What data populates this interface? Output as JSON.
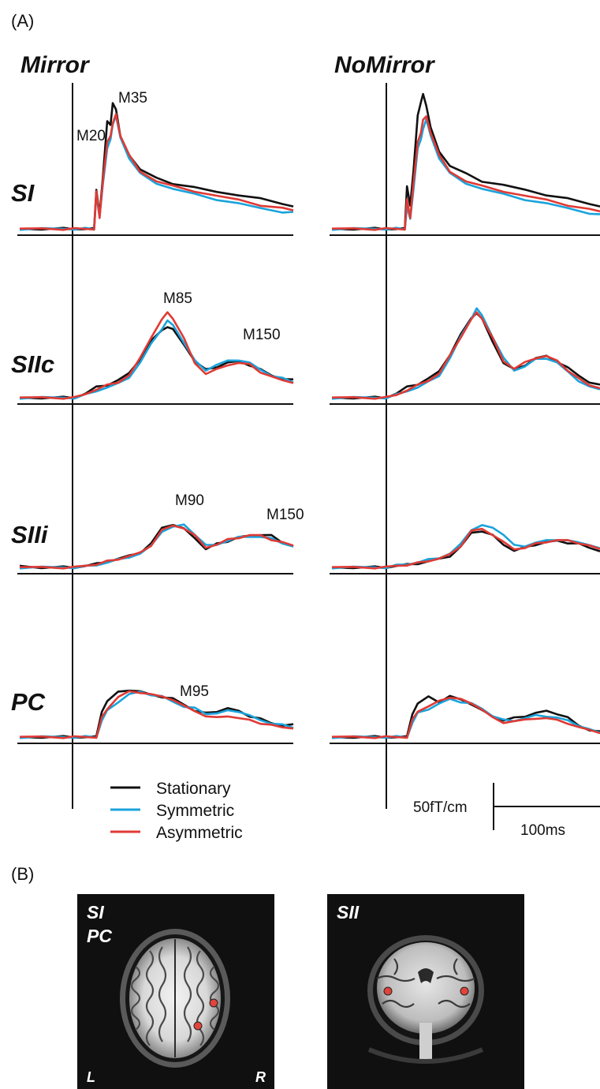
{
  "panel_a_label": "(A)",
  "panel_b_label": "(B)",
  "conditions": [
    "Mirror",
    "NoMirror"
  ],
  "rows": [
    "SI",
    "SIIc",
    "SIIi",
    "PC"
  ],
  "peak_labels": {
    "SI": [
      "M20",
      "M35"
    ],
    "SIIc": [
      "M85",
      "M150"
    ],
    "SIIi": [
      "M90",
      "M150"
    ],
    "PC": [
      "M95"
    ]
  },
  "legend": [
    {
      "name": "Stationary",
      "color": "#111111"
    },
    {
      "name": "Symmetric",
      "color": "#1aa3dc"
    },
    {
      "name": "Asymmetric",
      "color": "#e03a34"
    }
  ],
  "scale_bar": {
    "amplitude": "50fT/cm",
    "time": "100ms"
  },
  "mri": {
    "left_labels": [
      "SI",
      "PC"
    ],
    "right_label": "SII",
    "orientation": [
      "L",
      "R"
    ],
    "marker_color": "#e0443a"
  },
  "chart_data": [
    {
      "type": "line",
      "condition": "Mirror",
      "row": "SI",
      "x_unit": "ms",
      "xlim": [
        -50,
        200
      ],
      "annotations": [
        {
          "text": "M20",
          "x": 20
        },
        {
          "text": "M35",
          "x": 35
        }
      ],
      "x": [
        -50,
        -30,
        -10,
        0,
        10,
        18,
        20,
        23,
        26,
        30,
        33,
        35,
        38,
        42,
        50,
        60,
        75,
        90,
        110,
        130,
        150,
        170,
        190,
        200
      ],
      "series": [
        {
          "name": "Stationary",
          "values": [
            0,
            0,
            0,
            0,
            0,
            0,
            35,
            12,
            45,
            95,
            90,
            110,
            105,
            80,
            65,
            52,
            44,
            40,
            36,
            32,
            30,
            26,
            22,
            20
          ]
        },
        {
          "name": "Symmetric",
          "values": [
            0,
            0,
            0,
            0,
            0,
            0,
            30,
            10,
            40,
            70,
            78,
            92,
            98,
            80,
            62,
            48,
            40,
            35,
            30,
            26,
            22,
            18,
            15,
            14
          ]
        },
        {
          "name": "Asymmetric",
          "values": [
            0,
            0,
            0,
            0,
            0,
            0,
            32,
            10,
            42,
            75,
            82,
            92,
            100,
            82,
            64,
            50,
            42,
            37,
            33,
            29,
            25,
            21,
            18,
            16
          ]
        }
      ]
    },
    {
      "type": "line",
      "condition": "NoMirror",
      "row": "SI",
      "x_unit": "ms",
      "xlim": [
        -50,
        200
      ],
      "x": [
        -50,
        -30,
        -10,
        0,
        10,
        18,
        20,
        23,
        26,
        30,
        33,
        35,
        38,
        42,
        50,
        60,
        75,
        90,
        110,
        130,
        150,
        170,
        190,
        200
      ],
      "series": [
        {
          "name": "Stationary",
          "values": [
            0,
            0,
            0,
            0,
            0,
            0,
            38,
            20,
            50,
            100,
            110,
            118,
            108,
            88,
            68,
            55,
            48,
            42,
            38,
            34,
            30,
            26,
            22,
            20
          ]
        },
        {
          "name": "Symmetric",
          "values": [
            0,
            0,
            0,
            0,
            0,
            0,
            20,
            8,
            35,
            70,
            78,
            88,
            95,
            82,
            62,
            48,
            40,
            35,
            30,
            26,
            22,
            18,
            14,
            12
          ]
        },
        {
          "name": "Asymmetric",
          "values": [
            0,
            0,
            0,
            0,
            0,
            0,
            25,
            10,
            40,
            75,
            85,
            95,
            98,
            85,
            64,
            50,
            42,
            37,
            33,
            29,
            25,
            21,
            17,
            15
          ]
        }
      ]
    },
    {
      "type": "line",
      "condition": "Mirror",
      "row": "SIIc",
      "x_unit": "ms",
      "xlim": [
        -50,
        200
      ],
      "annotations": [
        {
          "text": "M85",
          "x": 85
        },
        {
          "text": "M150",
          "x": 150
        }
      ],
      "x": [
        -50,
        -30,
        -10,
        0,
        10,
        20,
        30,
        40,
        50,
        60,
        70,
        80,
        85,
        90,
        100,
        110,
        120,
        130,
        140,
        150,
        160,
        170,
        180,
        190,
        200
      ],
      "series": [
        {
          "name": "Stationary",
          "values": [
            0,
            0,
            0,
            0,
            5,
            12,
            15,
            20,
            28,
            45,
            65,
            78,
            82,
            78,
            62,
            42,
            32,
            36,
            40,
            42,
            38,
            32,
            26,
            22,
            20
          ]
        },
        {
          "name": "Symmetric",
          "values": [
            0,
            0,
            0,
            0,
            3,
            8,
            12,
            16,
            24,
            40,
            62,
            80,
            88,
            84,
            64,
            42,
            32,
            38,
            42,
            44,
            40,
            32,
            26,
            22,
            18
          ]
        },
        {
          "name": "Asymmetric",
          "values": [
            0,
            0,
            0,
            0,
            4,
            10,
            14,
            18,
            26,
            45,
            70,
            90,
            98,
            92,
            68,
            40,
            28,
            32,
            38,
            40,
            38,
            30,
            24,
            20,
            18
          ]
        }
      ]
    },
    {
      "type": "line",
      "condition": "NoMirror",
      "row": "SIIc",
      "x_unit": "ms",
      "xlim": [
        -50,
        200
      ],
      "x": [
        -50,
        -30,
        -10,
        0,
        10,
        20,
        30,
        40,
        50,
        60,
        70,
        80,
        85,
        90,
        100,
        110,
        120,
        130,
        140,
        150,
        160,
        170,
        180,
        190,
        200
      ],
      "series": [
        {
          "name": "Stationary",
          "values": [
            0,
            0,
            0,
            0,
            5,
            12,
            16,
            22,
            30,
            50,
            72,
            92,
            98,
            90,
            65,
            40,
            32,
            38,
            45,
            48,
            42,
            34,
            26,
            18,
            14
          ]
        },
        {
          "name": "Symmetric",
          "values": [
            0,
            0,
            0,
            0,
            3,
            8,
            12,
            18,
            26,
            45,
            70,
            92,
            102,
            95,
            70,
            45,
            32,
            36,
            44,
            46,
            40,
            30,
            20,
            12,
            10
          ]
        },
        {
          "name": "Asymmetric",
          "values": [
            0,
            0,
            0,
            0,
            3,
            9,
            14,
            20,
            28,
            48,
            70,
            90,
            98,
            92,
            68,
            42,
            34,
            40,
            46,
            48,
            42,
            32,
            22,
            14,
            12
          ]
        }
      ]
    },
    {
      "type": "line",
      "condition": "Mirror",
      "row": "SIIi",
      "x_unit": "ms",
      "xlim": [
        -50,
        200
      ],
      "annotations": [
        {
          "text": "M90",
          "x": 90
        },
        {
          "text": "M150",
          "x": 175
        }
      ],
      "x": [
        -50,
        -30,
        -10,
        0,
        10,
        20,
        30,
        40,
        50,
        60,
        70,
        80,
        90,
        100,
        110,
        120,
        130,
        140,
        150,
        160,
        170,
        180,
        190,
        200
      ],
      "series": [
        {
          "name": "Stationary",
          "values": [
            2,
            0,
            0,
            0,
            2,
            4,
            7,
            10,
            14,
            18,
            28,
            48,
            52,
            46,
            36,
            22,
            28,
            32,
            36,
            38,
            40,
            38,
            30,
            26
          ]
        },
        {
          "name": "Symmetric",
          "values": [
            0,
            0,
            0,
            0,
            1,
            3,
            6,
            9,
            13,
            16,
            26,
            44,
            48,
            52,
            40,
            26,
            28,
            32,
            36,
            38,
            36,
            35,
            30,
            24
          ]
        },
        {
          "name": "Asymmetric",
          "values": [
            0,
            0,
            0,
            0,
            2,
            4,
            7,
            10,
            14,
            17,
            27,
            45,
            50,
            48,
            38,
            24,
            28,
            33,
            36,
            39,
            38,
            34,
            30,
            26
          ]
        }
      ]
    },
    {
      "type": "line",
      "condition": "NoMirror",
      "row": "SIIi",
      "x_unit": "ms",
      "xlim": [
        -50,
        200
      ],
      "x": [
        -50,
        -30,
        -10,
        0,
        10,
        20,
        30,
        40,
        50,
        60,
        70,
        80,
        90,
        100,
        110,
        120,
        130,
        140,
        150,
        160,
        170,
        180,
        190,
        200
      ],
      "series": [
        {
          "name": "Stationary",
          "values": [
            0,
            0,
            0,
            0,
            2,
            3,
            5,
            7,
            10,
            14,
            24,
            42,
            44,
            38,
            28,
            20,
            24,
            28,
            30,
            32,
            30,
            28,
            24,
            20
          ]
        },
        {
          "name": "Symmetric",
          "values": [
            0,
            0,
            0,
            0,
            2,
            4,
            6,
            9,
            12,
            16,
            28,
            46,
            50,
            48,
            40,
            26,
            26,
            30,
            32,
            34,
            32,
            30,
            28,
            22
          ]
        },
        {
          "name": "Asymmetric",
          "values": [
            0,
            0,
            0,
            0,
            2,
            3,
            5,
            8,
            11,
            15,
            26,
            44,
            46,
            40,
            30,
            22,
            24,
            28,
            31,
            33,
            32,
            30,
            26,
            22
          ]
        }
      ]
    },
    {
      "type": "line",
      "condition": "Mirror",
      "row": "PC",
      "x_unit": "ms",
      "xlim": [
        -50,
        200
      ],
      "annotations": [
        {
          "text": "M95",
          "x": 95
        }
      ],
      "x": [
        -50,
        -30,
        -10,
        0,
        10,
        20,
        25,
        30,
        40,
        50,
        60,
        70,
        80,
        90,
        100,
        110,
        120,
        130,
        140,
        150,
        160,
        170,
        180,
        190,
        200
      ],
      "series": [
        {
          "name": "Stationary",
          "values": [
            0,
            0,
            0,
            0,
            0,
            0,
            22,
            30,
            38,
            40,
            38,
            36,
            34,
            32,
            28,
            22,
            20,
            22,
            24,
            22,
            18,
            15,
            12,
            10,
            10
          ]
        },
        {
          "name": "Symmetric",
          "values": [
            0,
            0,
            0,
            0,
            0,
            0,
            14,
            22,
            30,
            36,
            38,
            36,
            34,
            30,
            26,
            24,
            20,
            20,
            22,
            22,
            18,
            14,
            12,
            10,
            8
          ]
        },
        {
          "name": "Asymmetric",
          "values": [
            0,
            0,
            0,
            0,
            0,
            0,
            16,
            24,
            34,
            38,
            38,
            36,
            34,
            32,
            26,
            22,
            18,
            16,
            18,
            16,
            14,
            12,
            10,
            8,
            8
          ]
        }
      ]
    },
    {
      "type": "line",
      "condition": "NoMirror",
      "row": "PC",
      "x_unit": "ms",
      "xlim": [
        -50,
        200
      ],
      "x": [
        -50,
        -30,
        -10,
        0,
        10,
        20,
        25,
        30,
        40,
        50,
        60,
        70,
        80,
        90,
        100,
        110,
        120,
        130,
        140,
        150,
        160,
        170,
        180,
        190,
        200
      ],
      "series": [
        {
          "name": "Stationary",
          "values": [
            0,
            0,
            0,
            0,
            0,
            0,
            20,
            28,
            34,
            30,
            34,
            32,
            28,
            22,
            18,
            14,
            16,
            18,
            20,
            22,
            20,
            16,
            10,
            6,
            4
          ]
        },
        {
          "name": "Symmetric",
          "values": [
            0,
            0,
            0,
            0,
            0,
            0,
            12,
            20,
            24,
            28,
            32,
            30,
            28,
            24,
            18,
            14,
            14,
            16,
            18,
            18,
            16,
            14,
            10,
            6,
            4
          ]
        },
        {
          "name": "Asymmetric",
          "values": [
            0,
            0,
            0,
            0,
            0,
            0,
            14,
            22,
            26,
            30,
            34,
            32,
            28,
            24,
            16,
            12,
            14,
            14,
            16,
            16,
            14,
            12,
            8,
            6,
            4
          ]
        }
      ]
    }
  ]
}
